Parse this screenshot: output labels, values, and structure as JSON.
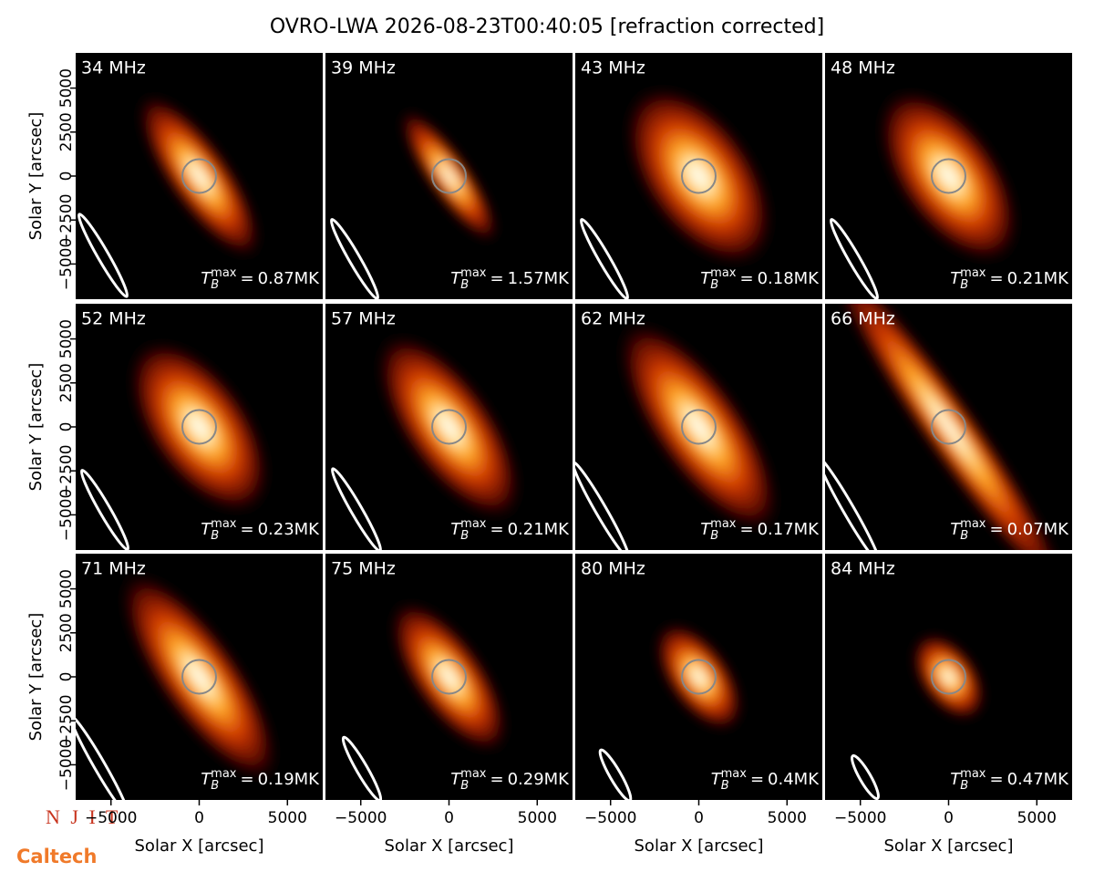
{
  "chart_data": {
    "type": "image-grid",
    "title": "OVRO-LWA 2026-08-23T00:40:05 [refraction corrected]",
    "xlabel": "Solar X [arcsec]",
    "ylabel": "Solar Y [arcsec]",
    "xlim": [
      -7000,
      7000
    ],
    "ylim": [
      -7000,
      7000
    ],
    "xticks": [
      {
        "value": -5000,
        "label": "−5000"
      },
      0,
      5000
    ],
    "yticks": [
      {
        "value": -5000,
        "label": "−5000"
      },
      {
        "value": -2500,
        "label": "−2500"
      },
      0,
      2500,
      5000
    ],
    "tb_symbol": "T",
    "tb_sub": "B",
    "tb_sup": "max",
    "tb_eq": "=",
    "panels": [
      {
        "freq": "34 MHz",
        "tb_max": "0.87MK"
      },
      {
        "freq": "39 MHz",
        "tb_max": "1.57MK"
      },
      {
        "freq": "43 MHz",
        "tb_max": "0.18MK"
      },
      {
        "freq": "48 MHz",
        "tb_max": "0.21MK"
      },
      {
        "freq": "52 MHz",
        "tb_max": "0.23MK"
      },
      {
        "freq": "57 MHz",
        "tb_max": "0.21MK"
      },
      {
        "freq": "62 MHz",
        "tb_max": "0.17MK"
      },
      {
        "freq": "66 MHz",
        "tb_max": "0.07MK"
      },
      {
        "freq": "71 MHz",
        "tb_max": "0.19MK"
      },
      {
        "freq": "75 MHz",
        "tb_max": "0.29MK"
      },
      {
        "freq": "80 MHz",
        "tb_max": "0.4MK"
      },
      {
        "freq": "84 MHz",
        "tb_max": "0.47MK"
      }
    ]
  },
  "logos": {
    "njit": "N J I T",
    "caltech": "Caltech"
  }
}
